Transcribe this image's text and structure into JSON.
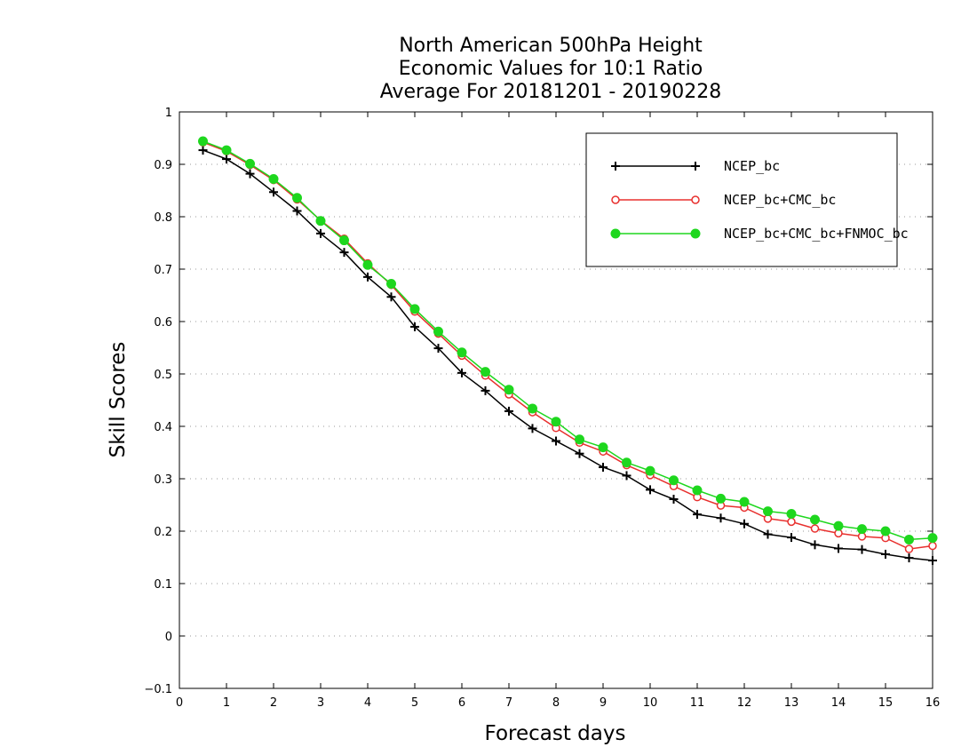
{
  "chart_data": {
    "type": "line",
    "title_lines": [
      "North American 500hPa Height",
      "Economic Values for 10:1 Ratio",
      "Average For 20181201 - 20190228"
    ],
    "xlabel": "Forecast days",
    "ylabel": "Skill Scores",
    "xlim": [
      0,
      16
    ],
    "ylim": [
      -0.1,
      1
    ],
    "x_ticks": [
      "0",
      "1",
      "2",
      "3",
      "4",
      "5",
      "6",
      "7",
      "8",
      "9",
      "10",
      "11",
      "12",
      "13",
      "14",
      "15",
      "16"
    ],
    "y_ticks": [
      "-0.1",
      "0",
      "0.1",
      "0.2",
      "0.3",
      "0.4",
      "0.5",
      "0.6",
      "0.7",
      "0.8",
      "0.9",
      "1"
    ],
    "grid": "horizontal dotted",
    "legend_position": "top-right",
    "x": [
      0.5,
      1,
      1.5,
      2,
      2.5,
      3,
      3.5,
      4,
      4.5,
      5,
      5.5,
      6,
      6.5,
      7,
      7.5,
      8,
      8.5,
      9,
      9.5,
      10,
      10.5,
      11,
      11.5,
      12,
      12.5,
      13,
      13.5,
      14,
      14.5,
      15,
      15.5,
      16
    ],
    "series": [
      {
        "name": "NCEP_bc",
        "color": "#000000",
        "marker": "plus",
        "values": [
          0.927,
          0.91,
          0.882,
          0.847,
          0.811,
          0.768,
          0.732,
          0.685,
          0.647,
          0.59,
          0.549,
          0.502,
          0.468,
          0.429,
          0.396,
          0.372,
          0.348,
          0.322,
          0.306,
          0.279,
          0.261,
          0.232,
          0.225,
          0.214,
          0.194,
          0.188,
          0.174,
          0.167,
          0.165,
          0.156,
          0.149,
          0.144
        ]
      },
      {
        "name": "NCEP_bc+CMC_bc",
        "color": "#e8302e",
        "marker": "open-circle",
        "values": [
          0.942,
          0.925,
          0.899,
          0.87,
          0.833,
          0.793,
          0.758,
          0.711,
          0.67,
          0.619,
          0.577,
          0.535,
          0.497,
          0.461,
          0.427,
          0.397,
          0.369,
          0.352,
          0.326,
          0.307,
          0.286,
          0.265,
          0.249,
          0.245,
          0.224,
          0.218,
          0.205,
          0.196,
          0.19,
          0.187,
          0.166,
          0.172
        ]
      },
      {
        "name": "NCEP_bc+CMC_bc+FNMOC_bc",
        "color": "#1ed71e",
        "marker": "filled-circle",
        "values": [
          0.944,
          0.927,
          0.901,
          0.872,
          0.836,
          0.792,
          0.755,
          0.708,
          0.672,
          0.624,
          0.581,
          0.541,
          0.504,
          0.47,
          0.434,
          0.409,
          0.375,
          0.36,
          0.331,
          0.315,
          0.297,
          0.278,
          0.262,
          0.256,
          0.238,
          0.233,
          0.222,
          0.21,
          0.204,
          0.2,
          0.184,
          0.187
        ]
      }
    ]
  }
}
